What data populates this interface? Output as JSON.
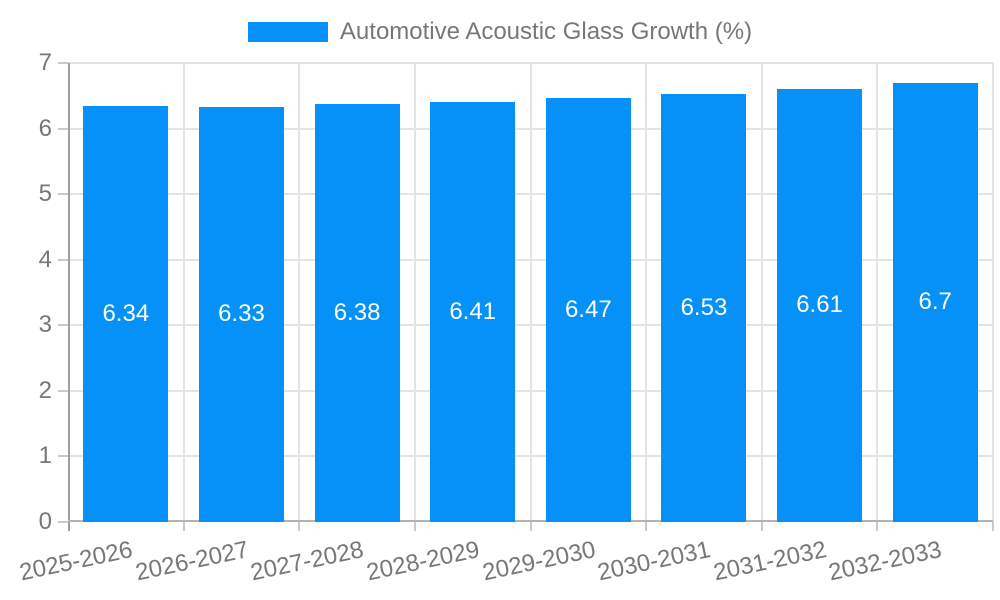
{
  "chart_data": {
    "type": "bar",
    "title": "Automotive Acoustic Glass Growth (%)",
    "categories": [
      "2025-2026",
      "2026-2027",
      "2027-2028",
      "2028-2029",
      "2029-2030",
      "2030-2031",
      "2031-2032",
      "2032-2033"
    ],
    "values": [
      6.34,
      6.33,
      6.38,
      6.41,
      6.47,
      6.53,
      6.61,
      6.7
    ],
    "value_labels": [
      "6.34",
      "6.33",
      "6.38",
      "6.41",
      "6.47",
      "6.53",
      "6.61",
      "6.7"
    ],
    "xlabel": "",
    "ylabel": "",
    "ylim": [
      0,
      7
    ],
    "yticks": [
      0,
      1,
      2,
      3,
      4,
      5,
      6,
      7
    ],
    "grid": true,
    "legend_position": "top",
    "colors": {
      "bar": "#0591f7",
      "value_label": "#ffffff",
      "grid_line": "#e4e4e4",
      "axis_line_y": "#9e9e9e",
      "axis_line_x": "#b3b3b3",
      "tick_mark": "#c9c9c9",
      "axis_text": "#777777",
      "legend_text": "#777777"
    }
  }
}
